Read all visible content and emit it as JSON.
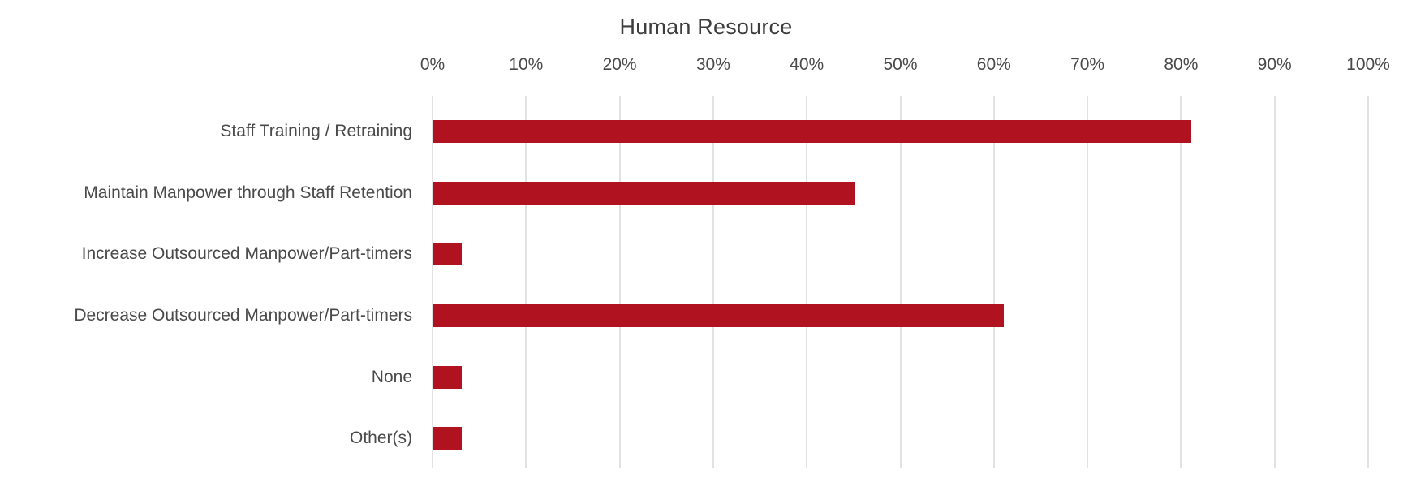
{
  "chart_data": {
    "type": "bar",
    "orientation": "horizontal",
    "title": "Human Resource",
    "categories": [
      "Staff Training / Retraining",
      "Maintain Manpower through Staff Retention",
      "Increase Outsourced Manpower/Part-timers",
      "Decrease Outsourced Manpower/Part-timers",
      "None",
      "Other(s)"
    ],
    "values": [
      81,
      45,
      3,
      61,
      3,
      3
    ],
    "value_unit": "%",
    "xlabel": "",
    "ylabel": "",
    "xlim": [
      0,
      100
    ],
    "x_tick_values": [
      0,
      10,
      20,
      30,
      40,
      50,
      60,
      70,
      80,
      90,
      100
    ],
    "x_tick_labels": [
      "0%",
      "10%",
      "20%",
      "30%",
      "40%",
      "50%",
      "60%",
      "70%",
      "80%",
      "90%",
      "100%"
    ],
    "axis_position": "top",
    "grid": "vertical",
    "legend": "none",
    "data_labels": "none",
    "colors": {
      "bar": "#B0131F",
      "gridline": "#E2E2E2",
      "title_text": "#3D3D3D",
      "axis_text": "#4A4A4A",
      "background": "#FFFFFF"
    }
  }
}
